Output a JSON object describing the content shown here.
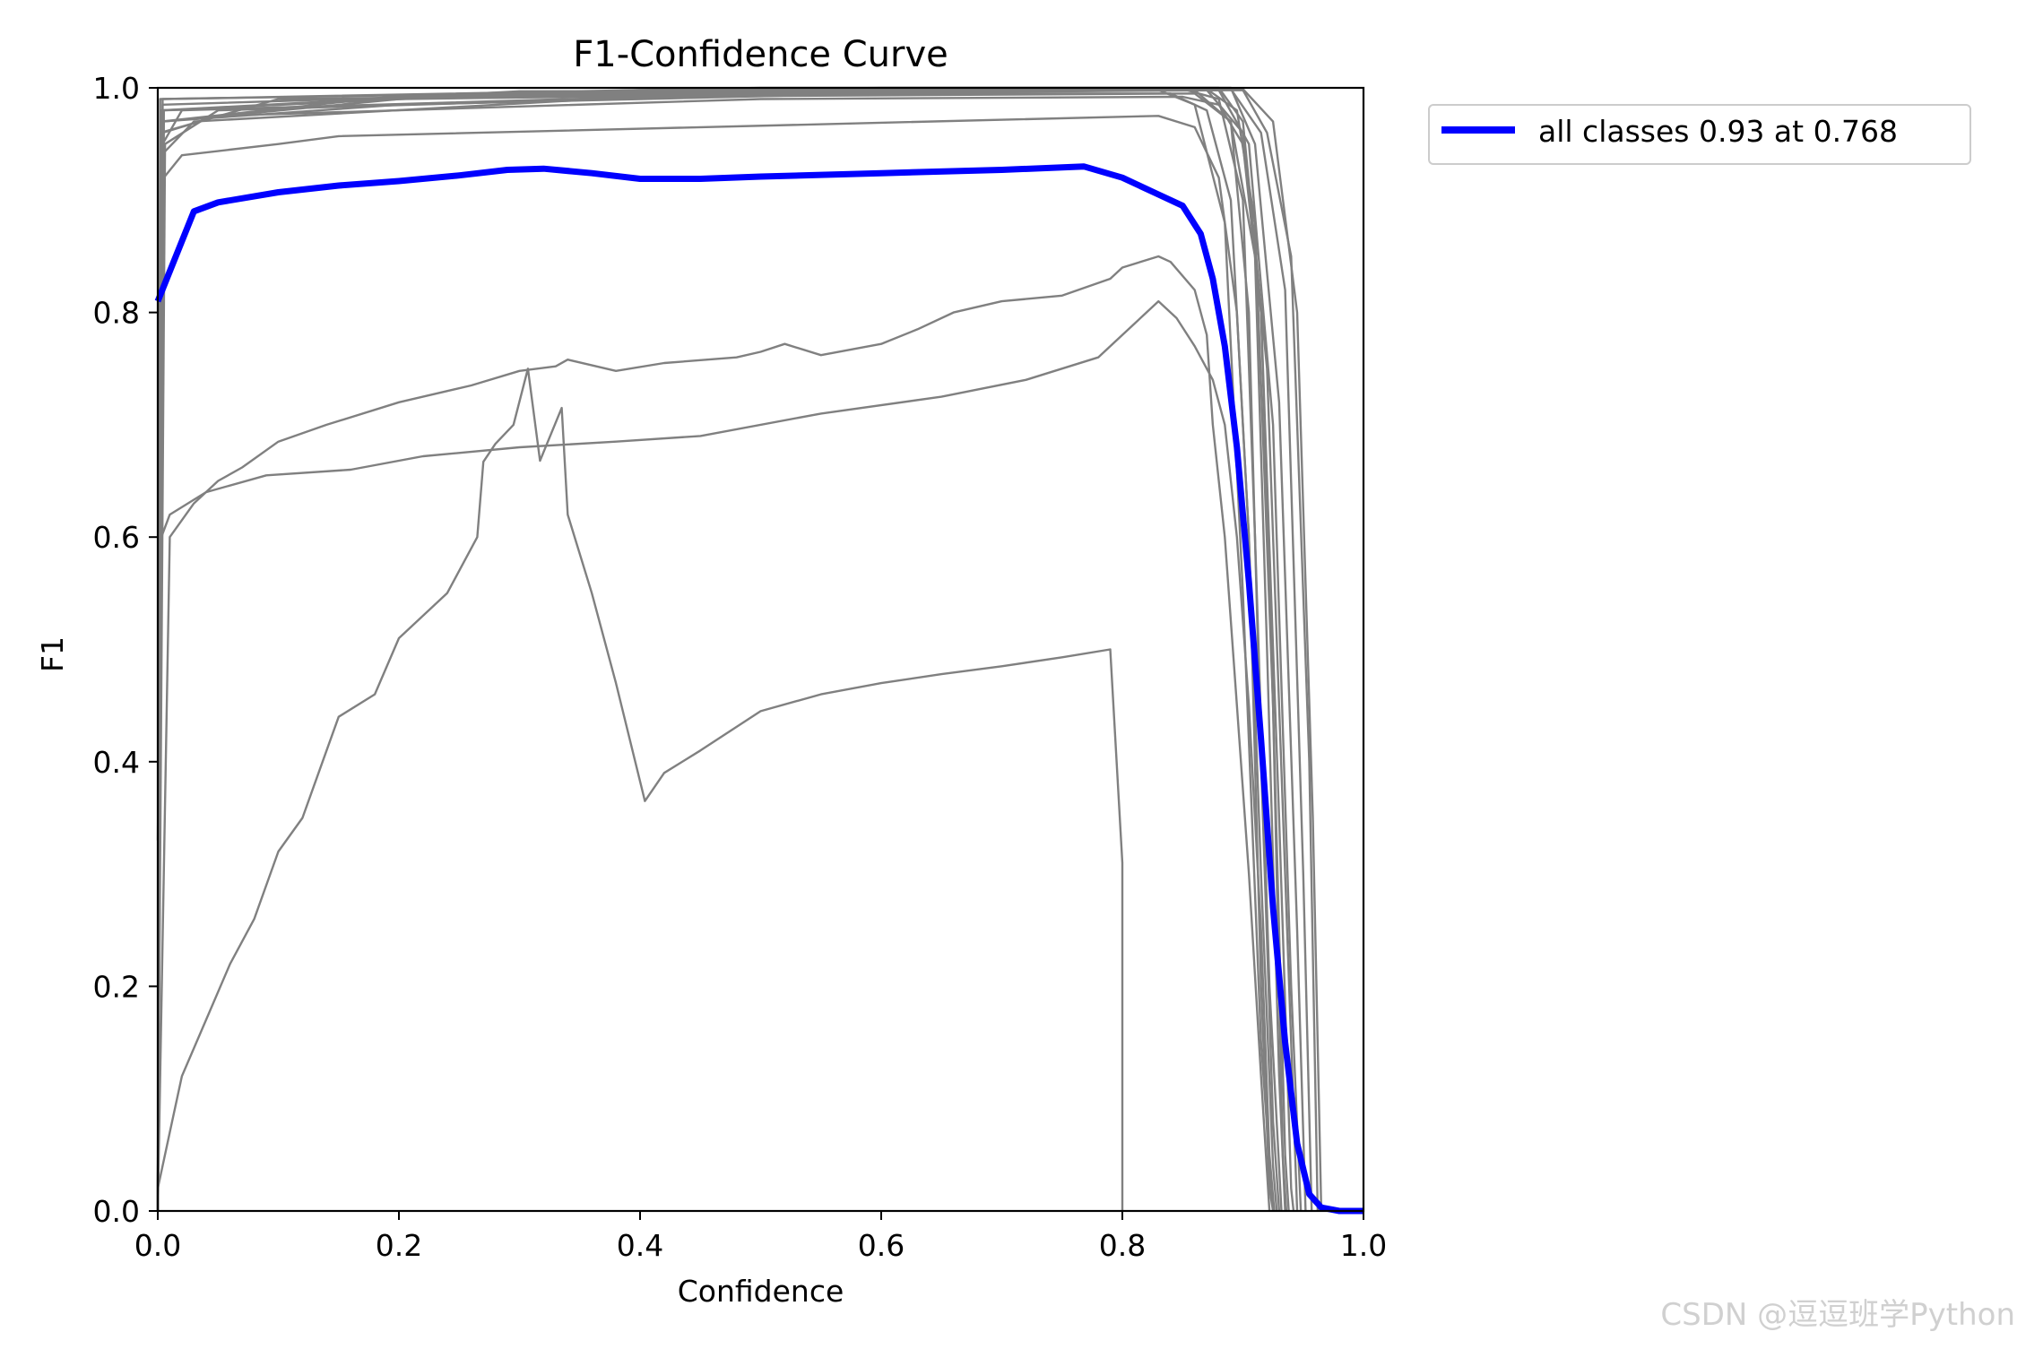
{
  "chart_data": {
    "type": "line",
    "title": "F1-Confidence Curve",
    "xlabel": "Confidence",
    "ylabel": "F1",
    "xlim": [
      0.0,
      1.0
    ],
    "ylim": [
      0.0,
      1.0
    ],
    "x_ticks": [
      "0.0",
      "0.2",
      "0.4",
      "0.6",
      "0.8",
      "1.0"
    ],
    "y_ticks": [
      "0.0",
      "0.2",
      "0.4",
      "0.6",
      "0.8",
      "1.0"
    ],
    "grid": false,
    "legend_position": "outside-top-right",
    "legend": [
      "all classes 0.93 at 0.768"
    ],
    "colors": {
      "classes": "#808080",
      "all": "#0000ff"
    },
    "series": [
      {
        "name": "all classes 0.93 at 0.768",
        "role": "all",
        "points": [
          [
            0,
            0.81
          ],
          [
            0.03,
            0.89
          ],
          [
            0.05,
            0.898
          ],
          [
            0.1,
            0.907
          ],
          [
            0.15,
            0.913
          ],
          [
            0.2,
            0.917
          ],
          [
            0.25,
            0.922
          ],
          [
            0.29,
            0.927
          ],
          [
            0.32,
            0.928
          ],
          [
            0.36,
            0.924
          ],
          [
            0.4,
            0.919
          ],
          [
            0.45,
            0.919
          ],
          [
            0.5,
            0.921
          ],
          [
            0.6,
            0.924
          ],
          [
            0.7,
            0.927
          ],
          [
            0.768,
            0.93
          ],
          [
            0.8,
            0.92
          ],
          [
            0.83,
            0.905
          ],
          [
            0.85,
            0.895
          ],
          [
            0.865,
            0.87
          ],
          [
            0.875,
            0.83
          ],
          [
            0.885,
            0.77
          ],
          [
            0.895,
            0.68
          ],
          [
            0.905,
            0.56
          ],
          [
            0.915,
            0.42
          ],
          [
            0.925,
            0.27
          ],
          [
            0.935,
            0.15
          ],
          [
            0.945,
            0.06
          ],
          [
            0.955,
            0.015
          ],
          [
            0.965,
            0.003
          ],
          [
            0.98,
            0.0
          ],
          [
            1.0,
            0.0
          ]
        ]
      },
      {
        "points": [
          [
            0,
            0.0
          ],
          [
            0.003,
            0.97
          ],
          [
            0.2,
            0.985
          ],
          [
            0.6,
            0.995
          ],
          [
            0.84,
            0.995
          ],
          [
            0.87,
            0.98
          ],
          [
            0.89,
            0.9
          ],
          [
            0.905,
            0.6
          ],
          [
            0.915,
            0.2
          ],
          [
            0.922,
            0.02
          ],
          [
            0.925,
            0.0
          ]
        ]
      },
      {
        "points": [
          [
            0,
            0.33
          ],
          [
            0.005,
            0.98
          ],
          [
            0.3,
            0.995
          ],
          [
            0.83,
            0.998
          ],
          [
            0.86,
            0.985
          ],
          [
            0.885,
            0.88
          ],
          [
            0.9,
            0.55
          ],
          [
            0.915,
            0.15
          ],
          [
            0.925,
            0.0
          ]
        ]
      },
      {
        "points": [
          [
            0,
            0.0
          ],
          [
            0.004,
            0.95
          ],
          [
            0.02,
            0.98
          ],
          [
            0.5,
            0.995
          ],
          [
            0.86,
            0.998
          ],
          [
            0.89,
            0.97
          ],
          [
            0.905,
            0.8
          ],
          [
            0.915,
            0.4
          ],
          [
            0.925,
            0.08
          ],
          [
            0.93,
            0.0
          ]
        ]
      },
      {
        "points": [
          [
            0,
            0.0
          ],
          [
            0.002,
            0.96
          ],
          [
            0.1,
            0.99
          ],
          [
            0.85,
            0.999
          ],
          [
            0.88,
            0.99
          ],
          [
            0.9,
            0.9
          ],
          [
            0.91,
            0.6
          ],
          [
            0.922,
            0.2
          ],
          [
            0.932,
            0.0
          ]
        ]
      },
      {
        "points": [
          [
            0,
            0.0
          ],
          [
            0.003,
            0.94
          ],
          [
            0.03,
            0.97
          ],
          [
            0.4,
            0.992
          ],
          [
            0.86,
            0.995
          ],
          [
            0.89,
            0.97
          ],
          [
            0.91,
            0.85
          ],
          [
            0.92,
            0.5
          ],
          [
            0.93,
            0.12
          ],
          [
            0.935,
            0.0
          ]
        ]
      },
      {
        "points": [
          [
            0,
            0.0
          ],
          [
            0.005,
            0.97
          ],
          [
            0.2,
            0.99
          ],
          [
            0.87,
            0.999
          ],
          [
            0.895,
            0.98
          ],
          [
            0.91,
            0.88
          ],
          [
            0.925,
            0.45
          ],
          [
            0.935,
            0.05
          ],
          [
            0.938,
            0.0
          ]
        ]
      },
      {
        "points": [
          [
            0,
            0.0
          ],
          [
            0.006,
            0.95
          ],
          [
            0.05,
            0.98
          ],
          [
            0.6,
            0.997
          ],
          [
            0.87,
            0.998
          ],
          [
            0.9,
            0.96
          ],
          [
            0.915,
            0.8
          ],
          [
            0.93,
            0.35
          ],
          [
            0.94,
            0.02
          ],
          [
            0.942,
            0.0
          ]
        ]
      },
      {
        "points": [
          [
            0,
            0.0
          ],
          [
            0.004,
            0.99
          ],
          [
            0.5,
            1.0
          ],
          [
            0.88,
            1.0
          ],
          [
            0.9,
            0.97
          ],
          [
            0.92,
            0.75
          ],
          [
            0.935,
            0.3
          ],
          [
            0.945,
            0.0
          ]
        ]
      },
      {
        "points": [
          [
            0,
            0.0
          ],
          [
            0.003,
            0.98
          ],
          [
            0.3,
            0.997
          ],
          [
            0.88,
            0.998
          ],
          [
            0.905,
            0.95
          ],
          [
            0.925,
            0.7
          ],
          [
            0.94,
            0.2
          ],
          [
            0.948,
            0.0
          ]
        ]
      },
      {
        "points": [
          [
            0,
            0.0
          ],
          [
            0.002,
            0.99
          ],
          [
            0.6,
            1.0
          ],
          [
            0.89,
            1.0
          ],
          [
            0.91,
            0.95
          ],
          [
            0.93,
            0.72
          ],
          [
            0.945,
            0.25
          ],
          [
            0.952,
            0.0
          ]
        ]
      },
      {
        "points": [
          [
            0,
            0.0
          ],
          [
            0.004,
            0.985
          ],
          [
            0.4,
            0.998
          ],
          [
            0.89,
            0.999
          ],
          [
            0.915,
            0.96
          ],
          [
            0.935,
            0.82
          ],
          [
            0.95,
            0.3
          ],
          [
            0.957,
            0.0
          ]
        ]
      },
      {
        "points": [
          [
            0,
            0.0
          ],
          [
            0.003,
            0.97
          ],
          [
            0.2,
            0.993
          ],
          [
            0.9,
            0.998
          ],
          [
            0.92,
            0.96
          ],
          [
            0.94,
            0.85
          ],
          [
            0.955,
            0.4
          ],
          [
            0.962,
            0.0
          ]
        ]
      },
      {
        "points": [
          [
            0,
            0.0
          ],
          [
            0.005,
            0.98
          ],
          [
            0.7,
            0.999
          ],
          [
            0.9,
            0.999
          ],
          [
            0.925,
            0.97
          ],
          [
            0.945,
            0.8
          ],
          [
            0.958,
            0.35
          ],
          [
            0.965,
            0.0
          ]
        ]
      },
      {
        "points": [
          [
            0,
            0.0
          ],
          [
            0.004,
            0.96
          ],
          [
            0.05,
            0.975
          ],
          [
            0.5,
            0.99
          ],
          [
            0.85,
            0.992
          ],
          [
            0.88,
            0.985
          ],
          [
            0.9,
            0.95
          ],
          [
            0.915,
            0.8
          ],
          [
            0.925,
            0.45
          ],
          [
            0.933,
            0.05
          ],
          [
            0.936,
            0.0
          ]
        ]
      },
      {
        "points": [
          [
            0,
            0.0
          ],
          [
            0.005,
            0.92
          ],
          [
            0.02,
            0.94
          ],
          [
            0.1,
            0.95
          ],
          [
            0.15,
            0.957
          ],
          [
            0.83,
            0.975
          ],
          [
            0.86,
            0.965
          ],
          [
            0.88,
            0.92
          ],
          [
            0.895,
            0.8
          ],
          [
            0.905,
            0.6
          ],
          [
            0.915,
            0.3
          ],
          [
            0.925,
            0.04
          ],
          [
            0.928,
            0.0
          ]
        ]
      },
      {
        "points": [
          [
            0,
            0.0
          ],
          [
            0.003,
            0.6
          ],
          [
            0.01,
            0.62
          ],
          [
            0.04,
            0.64
          ],
          [
            0.09,
            0.655
          ],
          [
            0.16,
            0.66
          ],
          [
            0.22,
            0.672
          ],
          [
            0.3,
            0.68
          ],
          [
            0.38,
            0.685
          ],
          [
            0.45,
            0.69
          ],
          [
            0.55,
            0.71
          ],
          [
            0.65,
            0.725
          ],
          [
            0.72,
            0.74
          ],
          [
            0.78,
            0.76
          ],
          [
            0.81,
            0.79
          ],
          [
            0.83,
            0.81
          ],
          [
            0.845,
            0.795
          ],
          [
            0.86,
            0.77
          ],
          [
            0.875,
            0.74
          ],
          [
            0.885,
            0.7
          ],
          [
            0.895,
            0.6
          ],
          [
            0.905,
            0.45
          ],
          [
            0.915,
            0.25
          ],
          [
            0.922,
            0.05
          ],
          [
            0.926,
            0.0
          ]
        ]
      },
      {
        "points": [
          [
            0,
            0.0
          ],
          [
            0.01,
            0.6
          ],
          [
            0.03,
            0.63
          ],
          [
            0.05,
            0.65
          ],
          [
            0.07,
            0.662
          ],
          [
            0.1,
            0.685
          ],
          [
            0.14,
            0.7
          ],
          [
            0.2,
            0.72
          ],
          [
            0.26,
            0.735
          ],
          [
            0.3,
            0.748
          ],
          [
            0.33,
            0.752
          ],
          [
            0.34,
            0.758
          ],
          [
            0.38,
            0.748
          ],
          [
            0.42,
            0.755
          ],
          [
            0.48,
            0.76
          ],
          [
            0.5,
            0.765
          ],
          [
            0.52,
            0.772
          ],
          [
            0.55,
            0.762
          ],
          [
            0.6,
            0.772
          ],
          [
            0.63,
            0.785
          ],
          [
            0.66,
            0.8
          ],
          [
            0.7,
            0.81
          ],
          [
            0.75,
            0.815
          ],
          [
            0.79,
            0.83
          ],
          [
            0.8,
            0.84
          ],
          [
            0.83,
            0.85
          ],
          [
            0.84,
            0.845
          ],
          [
            0.86,
            0.82
          ],
          [
            0.87,
            0.78
          ],
          [
            0.875,
            0.7
          ],
          [
            0.885,
            0.6
          ],
          [
            0.895,
            0.45
          ],
          [
            0.905,
            0.3
          ],
          [
            0.915,
            0.12
          ],
          [
            0.922,
            0.0
          ]
        ]
      },
      {
        "points": [
          [
            0,
            0.02
          ],
          [
            0.01,
            0.07
          ],
          [
            0.02,
            0.12
          ],
          [
            0.04,
            0.17
          ],
          [
            0.06,
            0.22
          ],
          [
            0.08,
            0.26
          ],
          [
            0.1,
            0.32
          ],
          [
            0.12,
            0.35
          ],
          [
            0.14,
            0.41
          ],
          [
            0.15,
            0.44
          ],
          [
            0.18,
            0.46
          ],
          [
            0.2,
            0.51
          ],
          [
            0.24,
            0.55
          ],
          [
            0.265,
            0.6
          ],
          [
            0.27,
            0.667
          ],
          [
            0.28,
            0.683
          ],
          [
            0.295,
            0.7
          ],
          [
            0.307,
            0.75
          ],
          [
            0.317,
            0.668
          ],
          [
            0.335,
            0.715
          ],
          [
            0.34,
            0.62
          ],
          [
            0.36,
            0.55
          ],
          [
            0.38,
            0.47
          ],
          [
            0.404,
            0.365
          ],
          [
            0.42,
            0.39
          ],
          [
            0.45,
            0.41
          ],
          [
            0.5,
            0.445
          ],
          [
            0.55,
            0.46
          ],
          [
            0.6,
            0.47
          ],
          [
            0.65,
            0.478
          ],
          [
            0.7,
            0.485
          ],
          [
            0.75,
            0.493
          ],
          [
            0.79,
            0.5
          ],
          [
            0.8,
            0.31
          ],
          [
            0.8,
            0.0
          ]
        ]
      }
    ],
    "watermark": "CSDN @逗逗班学Python"
  }
}
